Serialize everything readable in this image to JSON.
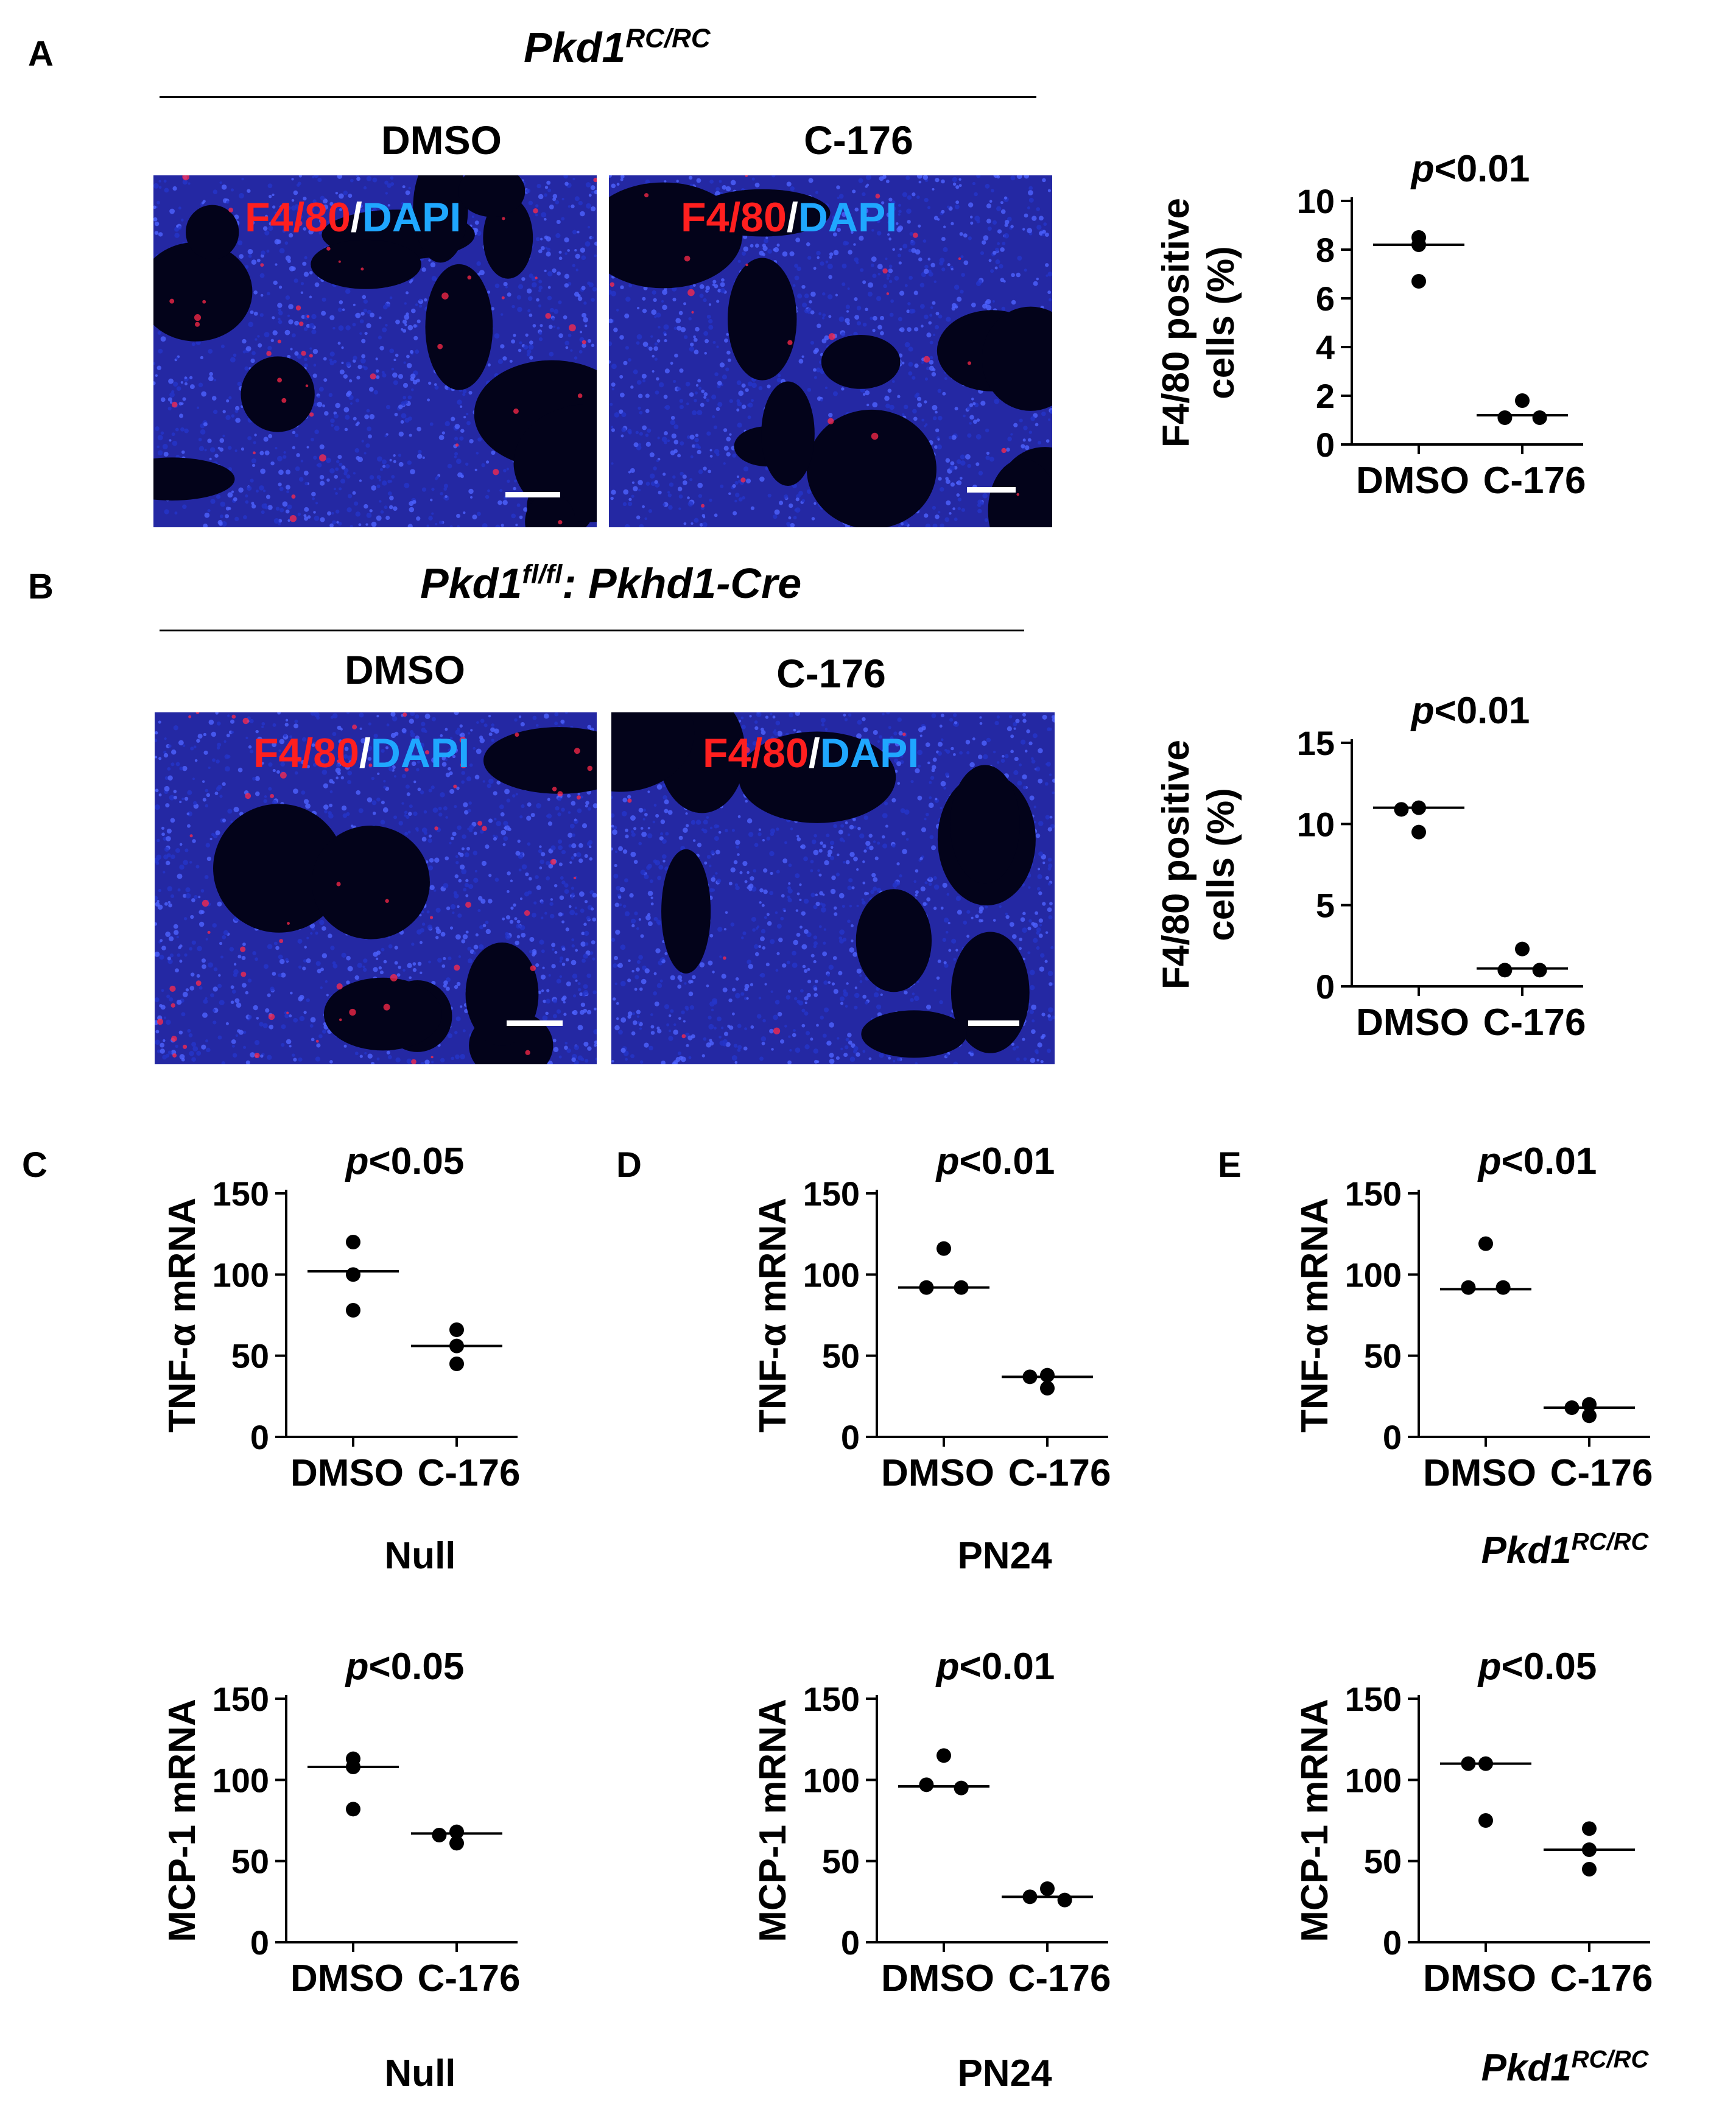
{
  "panelA": {
    "letter": "A",
    "genotype": {
      "base": "Pkd1",
      "sup": "RC/RC"
    },
    "groups": [
      "DMSO",
      "C-176"
    ],
    "stain": {
      "red": "F4/80",
      "slash": "/",
      "blue": "DAPI"
    }
  },
  "panelB": {
    "letter": "B",
    "genotype": {
      "base": "Pkd1",
      "sup": "fl/fl",
      "rest": ": Pkhd1-Cre"
    },
    "groups": [
      "DMSO",
      "C-176"
    ],
    "stain": {
      "red": "F4/80",
      "slash": "/",
      "blue": "DAPI"
    }
  },
  "letters": {
    "c": "C",
    "d": "D",
    "e": "E"
  },
  "chart_data": [
    {
      "id": "A",
      "type": "scatter",
      "ylabel": [
        "F4/80 positive",
        "cells (%)"
      ],
      "ylim": [
        0,
        10
      ],
      "yticks": [
        0,
        2,
        4,
        6,
        8,
        10
      ],
      "categories": [
        "DMSO",
        "C-176"
      ],
      "points": [
        [
          8.5,
          8.2,
          6.7
        ],
        [
          1.8,
          1.1,
          1.1
        ]
      ],
      "means": [
        8.2,
        1.2
      ],
      "p": "<0.01",
      "sublabel": null
    },
    {
      "id": "B",
      "type": "scatter",
      "ylabel": [
        "F4/80 positive",
        "cells (%)"
      ],
      "ylim": [
        0,
        15
      ],
      "yticks": [
        0,
        5,
        10,
        15
      ],
      "categories": [
        "DMSO",
        "C-176"
      ],
      "points": [
        [
          11.0,
          10.9,
          9.5
        ],
        [
          2.3,
          1.0,
          1.0
        ]
      ],
      "means": [
        11.0,
        1.1
      ],
      "p": "<0.01",
      "sublabel": null
    },
    {
      "id": "C1",
      "type": "scatter",
      "ylabel": [
        "TNF-α mRNA"
      ],
      "ylim": [
        0,
        150
      ],
      "yticks": [
        0,
        50,
        100,
        150
      ],
      "categories": [
        "DMSO",
        "C-176"
      ],
      "points": [
        [
          120,
          100,
          78
        ],
        [
          66,
          56,
          45
        ]
      ],
      "means": [
        102,
        56
      ],
      "p": "<0.05",
      "sublabel": {
        "text": "Null"
      }
    },
    {
      "id": "D1",
      "type": "scatter",
      "ylabel": [
        "TNF-α mRNA"
      ],
      "ylim": [
        0,
        150
      ],
      "yticks": [
        0,
        50,
        100,
        150
      ],
      "categories": [
        "DMSO",
        "C-176"
      ],
      "points": [
        [
          116,
          92,
          92
        ],
        [
          38,
          37,
          30
        ]
      ],
      "means": [
        92,
        37
      ],
      "p": "<0.01",
      "sublabel": {
        "text": "PN24"
      }
    },
    {
      "id": "E1",
      "type": "scatter",
      "ylabel": [
        "TNF-α mRNA"
      ],
      "ylim": [
        0,
        150
      ],
      "yticks": [
        0,
        50,
        100,
        150
      ],
      "categories": [
        "DMSO",
        "C-176"
      ],
      "points": [
        [
          119,
          92,
          92
        ],
        [
          20,
          18,
          13
        ]
      ],
      "means": [
        91,
        18
      ],
      "p": "<0.01",
      "sublabel": {
        "base": "Pkd1",
        "sup": "RC/RC"
      }
    },
    {
      "id": "C2",
      "type": "scatter",
      "ylabel": [
        "MCP-1 mRNA"
      ],
      "ylim": [
        0,
        150
      ],
      "yticks": [
        0,
        50,
        100,
        150
      ],
      "categories": [
        "DMSO",
        "C-176"
      ],
      "points": [
        [
          113,
          108,
          82
        ],
        [
          68,
          66,
          61
        ]
      ],
      "means": [
        108,
        67
      ],
      "p": "<0.05",
      "sublabel": {
        "text": "Null"
      }
    },
    {
      "id": "D2",
      "type": "scatter",
      "ylabel": [
        "MCP-1 mRNA"
      ],
      "ylim": [
        0,
        150
      ],
      "yticks": [
        0,
        50,
        100,
        150
      ],
      "categories": [
        "DMSO",
        "C-176"
      ],
      "points": [
        [
          115,
          97,
          95
        ],
        [
          33,
          28,
          26
        ]
      ],
      "means": [
        96,
        28
      ],
      "p": "<0.01",
      "sublabel": {
        "text": "PN24"
      }
    },
    {
      "id": "E2",
      "type": "scatter",
      "ylabel": [
        "MCP-1 mRNA"
      ],
      "ylim": [
        0,
        150
      ],
      "yticks": [
        0,
        50,
        100,
        150
      ],
      "categories": [
        "DMSO",
        "C-176"
      ],
      "points": [
        [
          110,
          110,
          75
        ],
        [
          70,
          57,
          45
        ]
      ],
      "means": [
        110,
        57
      ],
      "p": "<0.05",
      "sublabel": {
        "base": "Pkd1",
        "sup": "RC/RC"
      }
    }
  ]
}
